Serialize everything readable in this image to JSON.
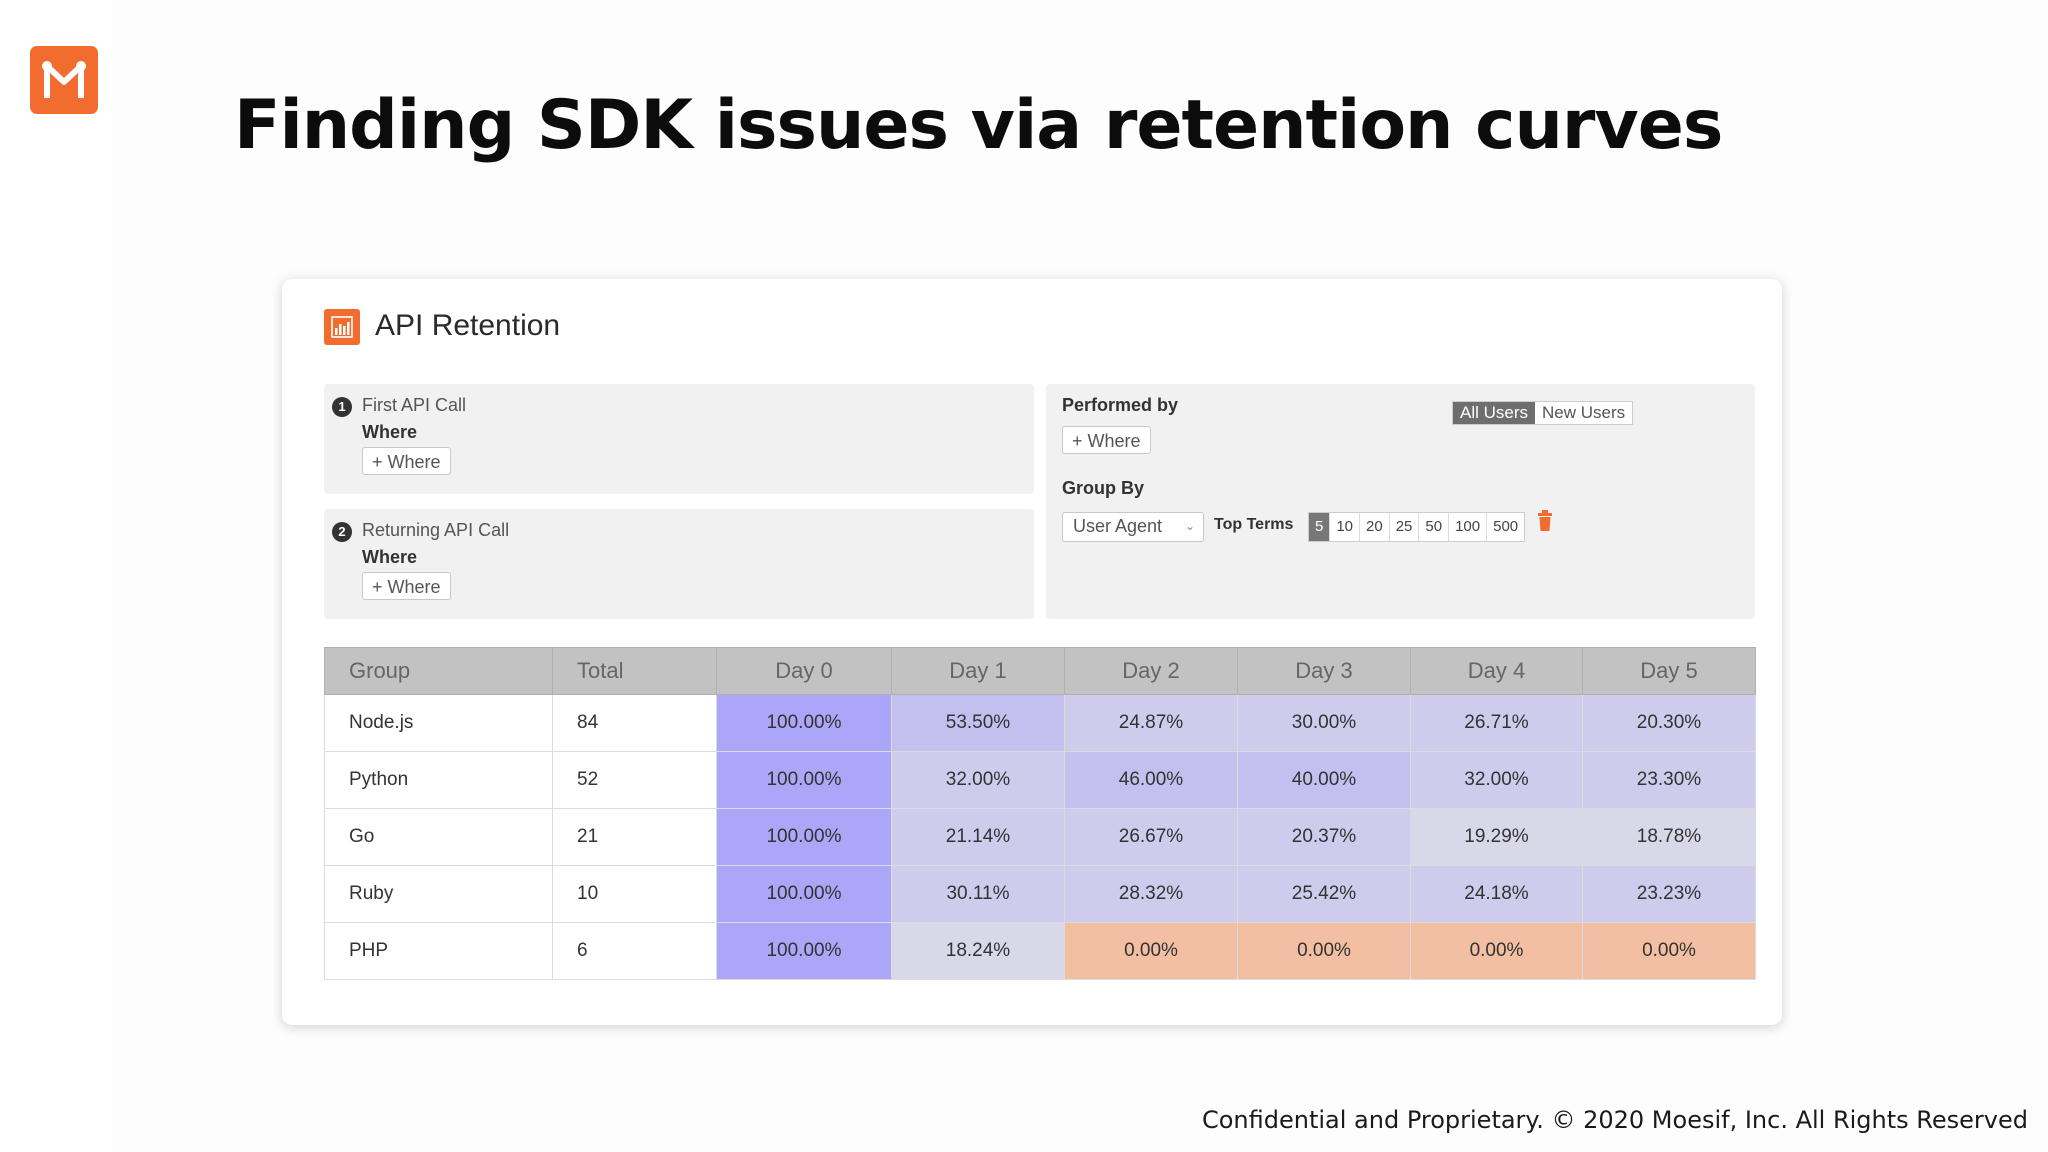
{
  "slide": {
    "title": "Finding SDK issues via retention curves",
    "footer": "Confidential and Proprietary. © 2020 Moesif, Inc. All Rights Reserved",
    "logo_icon": "moesif-logo-icon",
    "brand_color": "#f26b2f"
  },
  "card": {
    "title": "API Retention",
    "icon": "chart-icon"
  },
  "first_event": {
    "num": "1",
    "label": "First API Call",
    "where_label": "Where",
    "where_button": "+ Where"
  },
  "returning_event": {
    "num": "2",
    "label": "Returning API Call",
    "where_label": "Where",
    "where_button": "+ Where"
  },
  "filters": {
    "performed_by_label": "Performed by",
    "performed_by_options": [
      "All Users",
      "New Users"
    ],
    "performed_by_selected": "All Users",
    "where_button": "+ Where",
    "group_by_label": "Group By",
    "group_by_value": "User Agent",
    "top_terms_label": "Top Terms",
    "top_terms_options": [
      "5",
      "10",
      "20",
      "25",
      "50",
      "100",
      "500"
    ],
    "top_terms_selected": "5",
    "delete_icon": "trash-icon"
  },
  "table": {
    "headers": [
      "Group",
      "Total",
      "Day 0",
      "Day 1",
      "Day 2",
      "Day 3",
      "Day 4",
      "Day 5"
    ],
    "rows": [
      {
        "group": "Node.js",
        "total": "84",
        "days": [
          "100.00%",
          "53.50%",
          "24.87%",
          "30.00%",
          "26.71%",
          "20.30%"
        ]
      },
      {
        "group": "Python",
        "total": "52",
        "days": [
          "100.00%",
          "32.00%",
          "46.00%",
          "40.00%",
          "32.00%",
          "23.30%"
        ]
      },
      {
        "group": "Go",
        "total": "21",
        "days": [
          "100.00%",
          "21.14%",
          "26.67%",
          "20.37%",
          "19.29%",
          "18.78%"
        ]
      },
      {
        "group": "Ruby",
        "total": "10",
        "days": [
          "100.00%",
          "30.11%",
          "28.32%",
          "25.42%",
          "24.18%",
          "23.23%"
        ]
      },
      {
        "group": "PHP",
        "total": "6",
        "days": [
          "100.00%",
          "18.24%",
          "0.00%",
          "0.00%",
          "0.00%",
          "0.00%"
        ]
      }
    ],
    "colors": {
      "full": "#aba6f7",
      "high": "#c3c0ef",
      "mid": "#cecbec",
      "low": "#d9d8e8",
      "zero": "#f2bfa2"
    }
  }
}
